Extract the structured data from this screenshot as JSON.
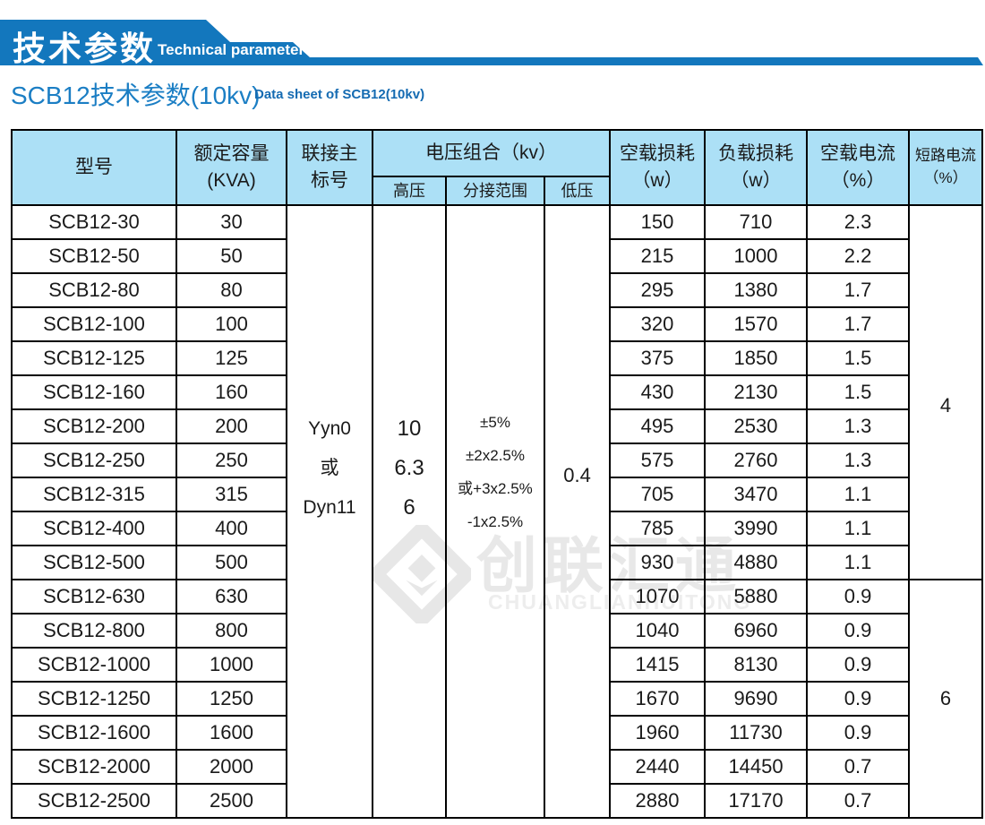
{
  "banner": {
    "title_cn": "技术参数",
    "title_en": "Technical parameter",
    "color": "#1377bd"
  },
  "page_title": {
    "cn": "SCB12技术参数(10kv)",
    "en": "Data sheet of SCB12(10kv)",
    "cn_color": "#1b7ec4",
    "en_color": "#156bb2"
  },
  "watermark": {
    "logo": "diamond-logo",
    "text_cn": "创联汇通",
    "text_en": "CHUANGLIANHUITONG",
    "color": "#e8e8e8"
  },
  "table": {
    "header_bg": "#ace0f6",
    "header": {
      "model": "型号",
      "capacity": "额定容量\n(KVA)",
      "vector": "联接主\n标号",
      "voltage_group": "电压组合（kv）",
      "hv": "高压",
      "tap": "分接范围",
      "lv": "低压",
      "no_load_loss": "空载损耗\n（w）",
      "load_loss": "负载损耗\n（w）",
      "no_load_current": "空载电流\n（%）",
      "short_circuit": "短路电流\n（%）"
    },
    "merged": {
      "vector_group": [
        "Yyn0",
        "或",
        "Dyn11"
      ],
      "high_voltage": [
        "10",
        "6.3",
        "6"
      ],
      "tap_range": [
        "±5%",
        "±2x2.5%",
        "或+3x2.5%",
        "-1x2.5%"
      ],
      "low_voltage": "0.4",
      "short_circuit_group1": "4",
      "short_circuit_group2": "6"
    },
    "rows": [
      {
        "model": "SCB12-30",
        "kva": "30",
        "no_load_loss": "150",
        "load_loss": "710",
        "no_load_current": "2.3"
      },
      {
        "model": "SCB12-50",
        "kva": "50",
        "no_load_loss": "215",
        "load_loss": "1000",
        "no_load_current": "2.2"
      },
      {
        "model": "SCB12-80",
        "kva": "80",
        "no_load_loss": "295",
        "load_loss": "1380",
        "no_load_current": "1.7"
      },
      {
        "model": "SCB12-100",
        "kva": "100",
        "no_load_loss": "320",
        "load_loss": "1570",
        "no_load_current": "1.7"
      },
      {
        "model": "SCB12-125",
        "kva": "125",
        "no_load_loss": "375",
        "load_loss": "1850",
        "no_load_current": "1.5"
      },
      {
        "model": "SCB12-160",
        "kva": "160",
        "no_load_loss": "430",
        "load_loss": "2130",
        "no_load_current": "1.5"
      },
      {
        "model": "SCB12-200",
        "kva": "200",
        "no_load_loss": "495",
        "load_loss": "2530",
        "no_load_current": "1.3"
      },
      {
        "model": "SCB12-250",
        "kva": "250",
        "no_load_loss": "575",
        "load_loss": "2760",
        "no_load_current": "1.3"
      },
      {
        "model": "SCB12-315",
        "kva": "315",
        "no_load_loss": "705",
        "load_loss": "3470",
        "no_load_current": "1.1"
      },
      {
        "model": "SCB12-400",
        "kva": "400",
        "no_load_loss": "785",
        "load_loss": "3990",
        "no_load_current": "1.1"
      },
      {
        "model": "SCB12-500",
        "kva": "500",
        "no_load_loss": "930",
        "load_loss": "4880",
        "no_load_current": "1.1"
      },
      {
        "model": "SCB12-630",
        "kva": "630",
        "no_load_loss": "1070",
        "load_loss": "5880",
        "no_load_current": "0.9"
      },
      {
        "model": "SCB12-800",
        "kva": "800",
        "no_load_loss": "1040",
        "load_loss": "6960",
        "no_load_current": "0.9"
      },
      {
        "model": "SCB12-1000",
        "kva": "1000",
        "no_load_loss": "1415",
        "load_loss": "8130",
        "no_load_current": "0.9"
      },
      {
        "model": "SCB12-1250",
        "kva": "1250",
        "no_load_loss": "1670",
        "load_loss": "9690",
        "no_load_current": "0.9"
      },
      {
        "model": "SCB12-1600",
        "kva": "1600",
        "no_load_loss": "1960",
        "load_loss": "11730",
        "no_load_current": "0.9"
      },
      {
        "model": "SCB12-2000",
        "kva": "2000",
        "no_load_loss": "2440",
        "load_loss": "14450",
        "no_load_current": "0.7"
      },
      {
        "model": "SCB12-2500",
        "kva": "2500",
        "no_load_loss": "2880",
        "load_loss": "17170",
        "no_load_current": "0.7"
      }
    ]
  }
}
